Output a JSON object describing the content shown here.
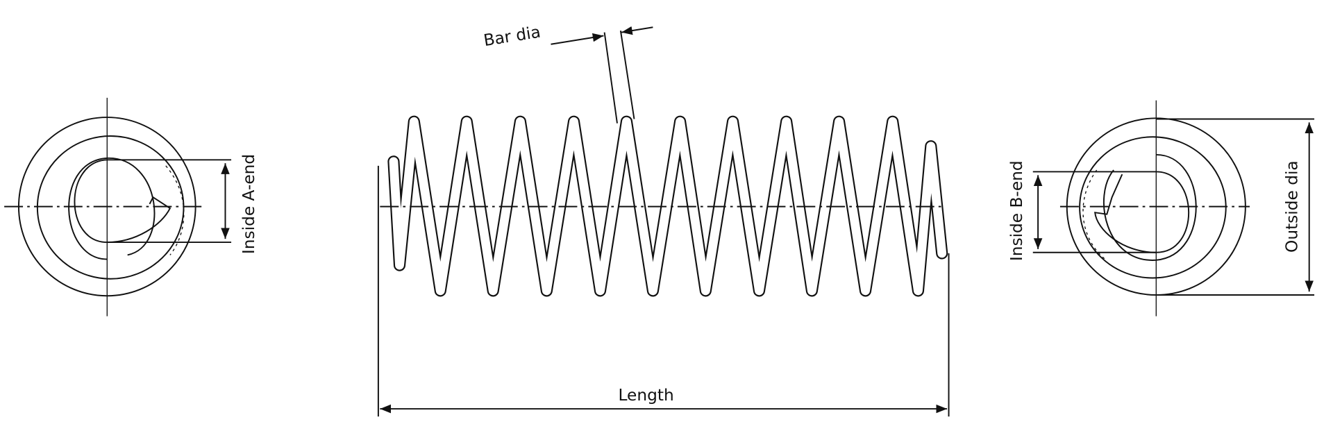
{
  "diagram": {
    "labels": {
      "bar_dia": "Bar dia",
      "inside_a_end": "Inside A-end",
      "inside_b_end": "Inside B-end",
      "outside_dia": "Outside dia",
      "length": "Length"
    },
    "colors": {
      "line": "#111111",
      "background": "#ffffff"
    }
  }
}
